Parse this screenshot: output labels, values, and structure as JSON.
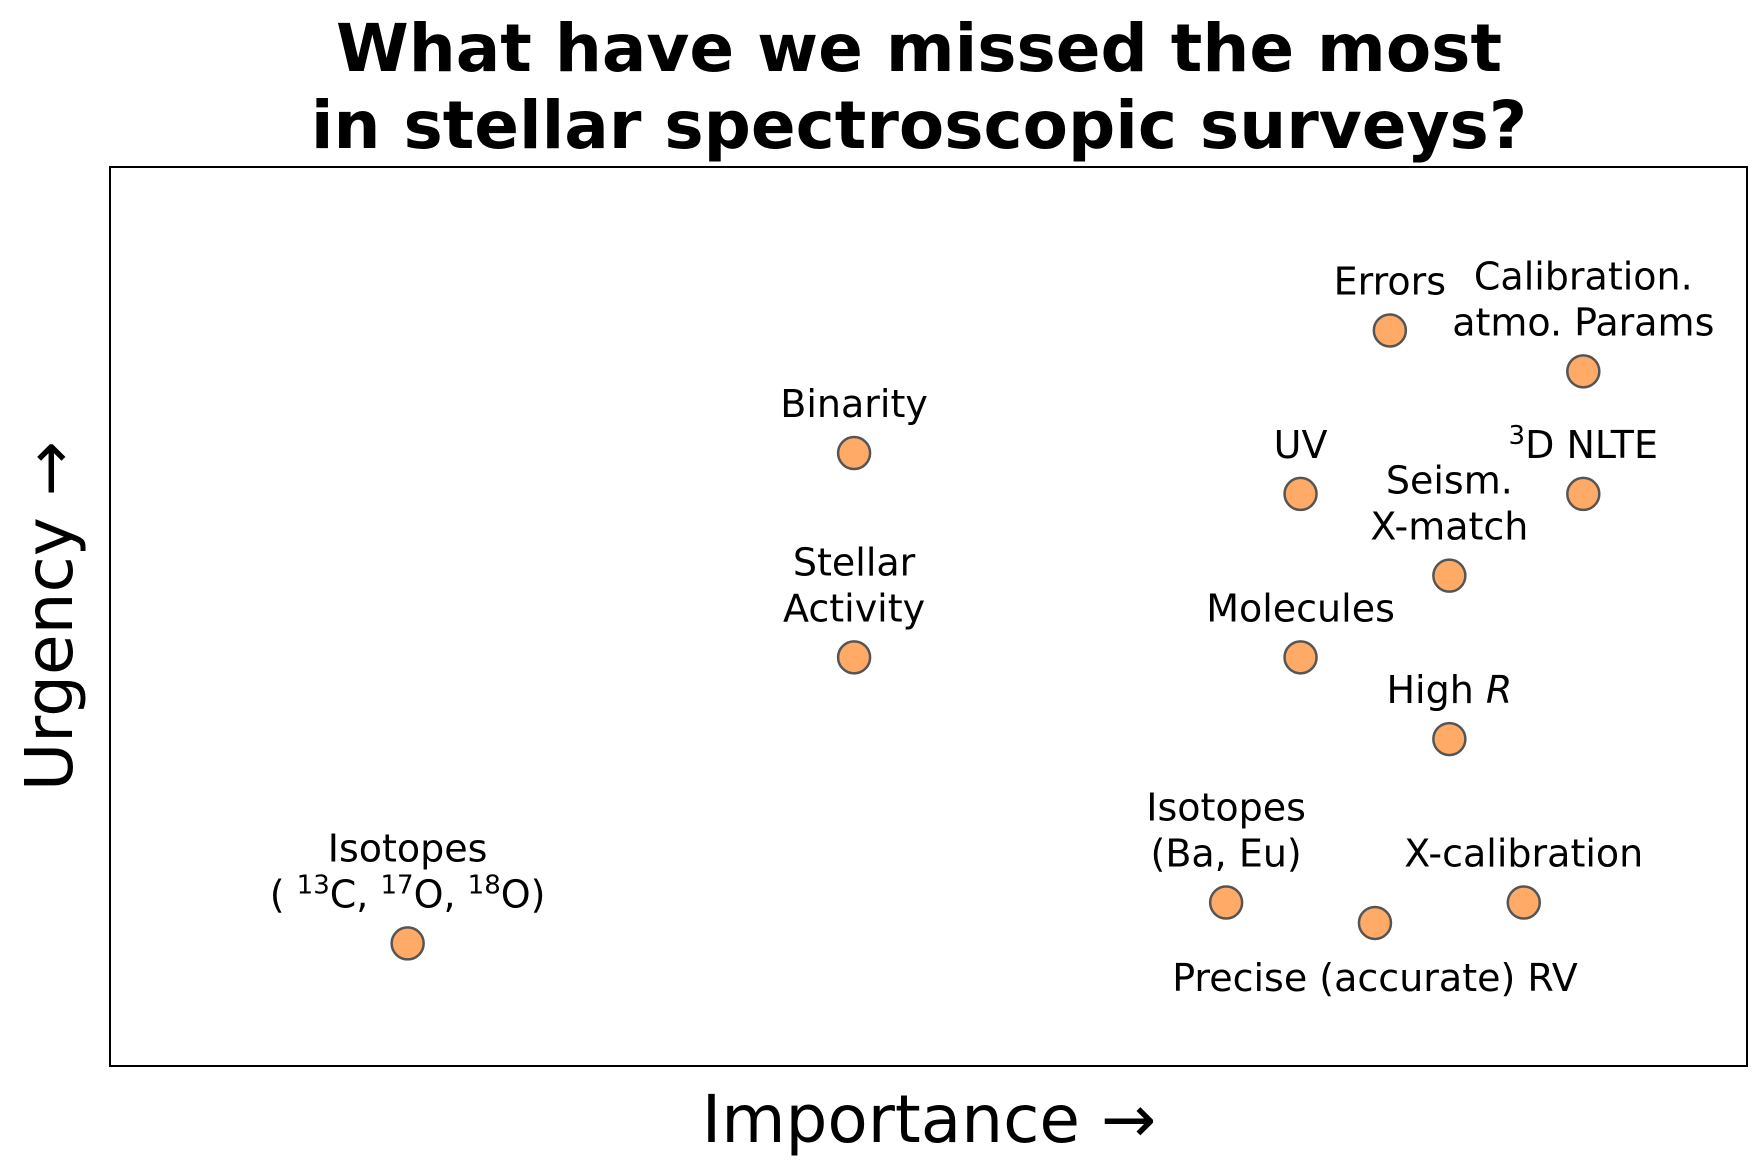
{
  "chart_data": {
    "type": "scatter",
    "title": [
      "What have we missed the most",
      "in stellar spectroscopic surveys?"
    ],
    "xlabel": "Importance →",
    "ylabel": "Urgency →",
    "xlim": [
      0,
      11
    ],
    "ylim": [
      0,
      11
    ],
    "grid": false,
    "ticks_visible": false,
    "marker_color": "#ffaa66",
    "marker_edge_color": "#555555",
    "points": [
      {
        "x": 8.6,
        "y": 9.0,
        "label_lines": [
          "Errors"
        ],
        "label_pos": "above"
      },
      {
        "x": 9.9,
        "y": 8.5,
        "label_lines": [
          "Calibration.",
          "atmo. Params"
        ],
        "label_pos": "above"
      },
      {
        "x": 5.0,
        "y": 7.5,
        "label_lines": [
          "Binarity"
        ],
        "label_pos": "above"
      },
      {
        "x": 8.0,
        "y": 7.0,
        "label_lines": [
          "UV"
        ],
        "label_pos": "above"
      },
      {
        "x": 9.9,
        "y": 7.0,
        "label_lines": [
          "3D NLTE"
        ],
        "label_pos": "above"
      },
      {
        "x": 9.0,
        "y": 6.0,
        "label_lines": [
          "Seism.",
          "X-match"
        ],
        "label_pos": "above"
      },
      {
        "x": 5.0,
        "y": 5.0,
        "label_lines": [
          "Stellar",
          "Activity"
        ],
        "label_pos": "above"
      },
      {
        "x": 8.0,
        "y": 5.0,
        "label_lines": [
          "Molecules"
        ],
        "label_pos": "above"
      },
      {
        "x": 9.0,
        "y": 4.0,
        "label_lines": [
          "High R"
        ],
        "label_pos": "above"
      },
      {
        "x": 7.5,
        "y": 2.0,
        "label_lines": [
          "Isotopes",
          "(Ba, Eu)"
        ],
        "label_pos": "above"
      },
      {
        "x": 8.5,
        "y": 1.75,
        "label_lines": [
          "Precise (accurate) RV"
        ],
        "label_pos": "below"
      },
      {
        "x": 9.5,
        "y": 2.0,
        "label_lines": [
          "X-calibration"
        ],
        "label_pos": "above"
      },
      {
        "x": 2.0,
        "y": 1.5,
        "label_lines": [
          "Isotopes",
          "( 13C, 17O, 18O)"
        ],
        "label_pos": "above"
      }
    ]
  }
}
